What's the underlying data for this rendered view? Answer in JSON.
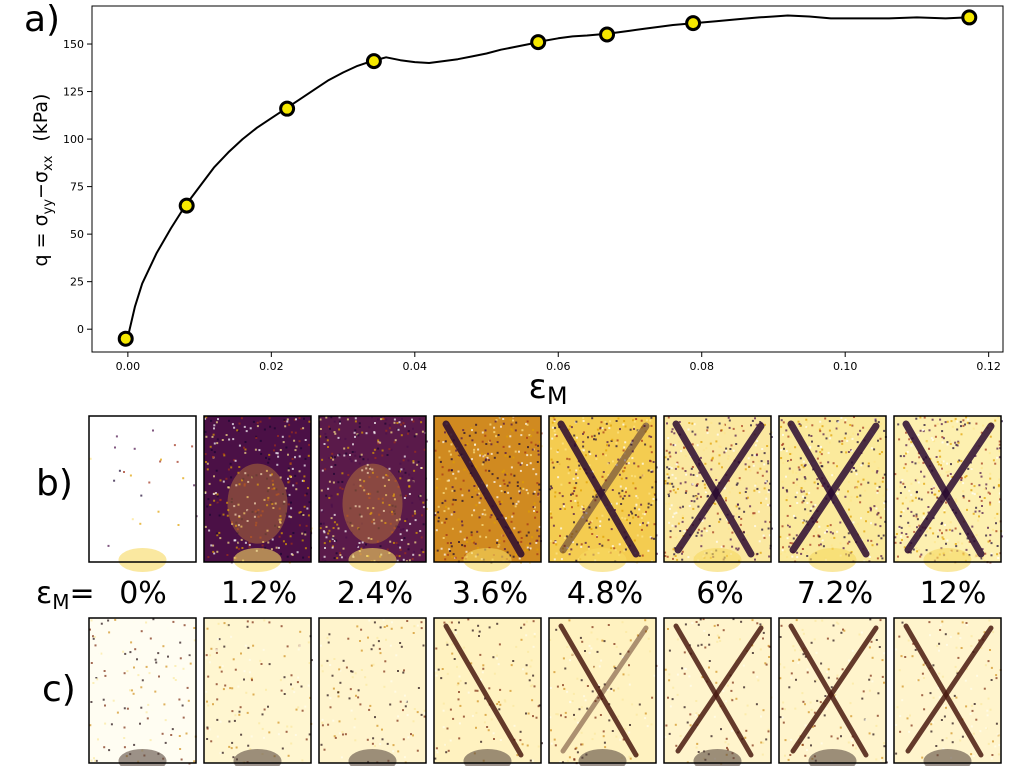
{
  "panel_labels": {
    "a": "a)",
    "b": "b)",
    "c": "c)"
  },
  "chart_data": {
    "type": "line",
    "title": "",
    "ylabel_parts": {
      "q": "q = σ",
      "yy_sub": "yy",
      "minus": "−σ",
      "xx_sub": "xx",
      "unit": "(kPa)"
    },
    "xlabel_parts": {
      "eps": "ε",
      "sub": "M"
    },
    "xlim": [
      -0.005,
      0.122
    ],
    "ylim": [
      -12,
      170
    ],
    "xticks": [
      0.0,
      0.02,
      0.04,
      0.06,
      0.08,
      0.1,
      0.12
    ],
    "xtick_labels": [
      "0.00",
      "0.02",
      "0.04",
      "0.06",
      "0.08",
      "0.10",
      "0.12"
    ],
    "yticks": [
      0,
      25,
      50,
      75,
      100,
      125,
      150
    ],
    "ytick_labels": [
      "0",
      "25",
      "50",
      "75",
      "100",
      "125",
      "150"
    ],
    "grid": false,
    "series": [
      {
        "role": "curve",
        "color": "#000000",
        "x": [
          -0.0003,
          0.0,
          0.001,
          0.002,
          0.004,
          0.006,
          0.008,
          0.01,
          0.012,
          0.014,
          0.016,
          0.018,
          0.02,
          0.022,
          0.024,
          0.026,
          0.028,
          0.03,
          0.032,
          0.034,
          0.036,
          0.038,
          0.04,
          0.042,
          0.044,
          0.046,
          0.048,
          0.05,
          0.052,
          0.054,
          0.056,
          0.057,
          0.06,
          0.062,
          0.064,
          0.067,
          0.07,
          0.072,
          0.074,
          0.076,
          0.079,
          0.082,
          0.085,
          0.088,
          0.09,
          0.092,
          0.095,
          0.098,
          0.1,
          0.103,
          0.106,
          0.11,
          0.114,
          0.117
        ],
        "y": [
          -5,
          -4,
          12,
          24,
          40,
          53,
          65,
          75,
          85,
          93,
          100,
          106,
          111,
          116,
          121,
          126,
          131,
          135,
          138.5,
          141,
          143,
          141.5,
          140.5,
          140,
          141,
          142,
          143.5,
          145,
          147,
          148.5,
          150,
          151,
          153,
          154,
          154.5,
          155.5,
          157,
          158,
          159,
          160,
          161,
          162,
          163,
          164,
          164.5,
          165,
          164.5,
          163.5,
          163.5,
          163.5,
          163.5,
          164,
          163.5,
          164
        ]
      },
      {
        "role": "markers",
        "color": "#f5e800",
        "x": [
          -0.0003,
          0.0082,
          0.0222,
          0.0343,
          0.0572,
          0.0668,
          0.0788,
          0.1173
        ],
        "y": [
          -5,
          65,
          116,
          141,
          151,
          155,
          161,
          164
        ]
      }
    ]
  },
  "strain_prefix": {
    "eps": "ε",
    "sub": "M",
    "eq": "="
  },
  "strain_labels": [
    "0%",
    "1.2%",
    "2.4%",
    "3.6%",
    "4.8%",
    "6%",
    "7.2%",
    "12%"
  ],
  "image_rows": {
    "b": {
      "colormap": [
        "#ffffff",
        "#fde68a",
        "#e0a000",
        "#a0301a",
        "#4a0f4a",
        "#1a0530"
      ]
    },
    "c": {
      "colormap": [
        "#fffdf0",
        "#fbe8a0",
        "#d09020",
        "#7a2a10",
        "#200a10"
      ]
    }
  }
}
